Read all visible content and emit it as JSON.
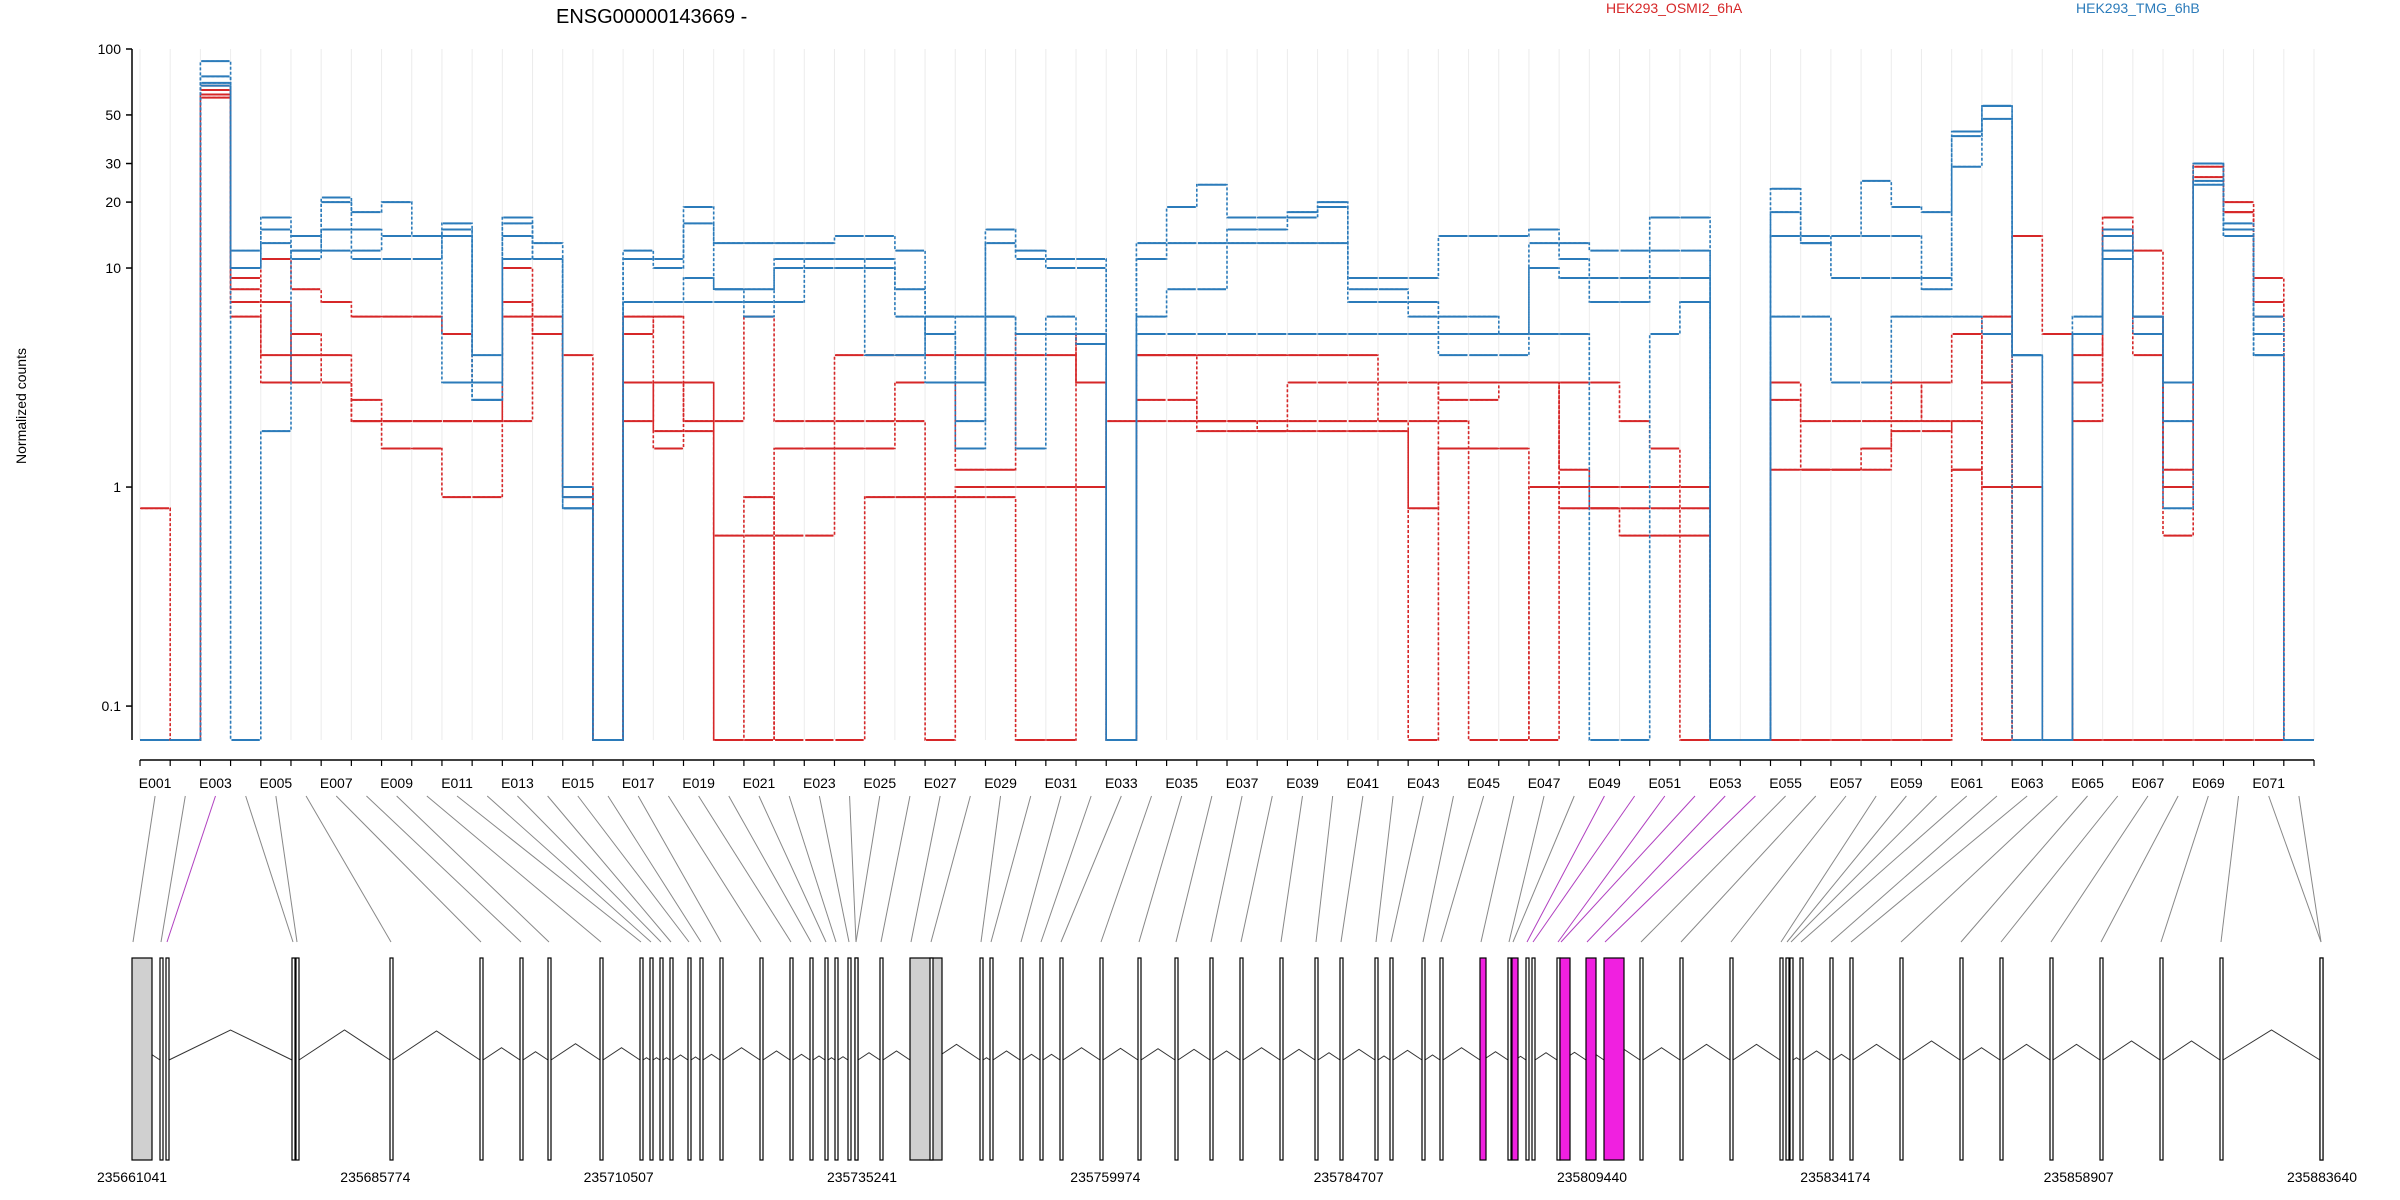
{
  "chart_data": {
    "type": "line",
    "title": "ENSG00000143669 -",
    "ylabel": "Normalized counts",
    "xlabel": "",
    "yscale": "log",
    "ylim": [
      0.07,
      100
    ],
    "y_ticks": [
      100,
      50,
      30,
      20,
      10,
      1,
      0.1
    ],
    "y_tick_labels": [
      "100",
      "50",
      "30",
      "20",
      "10",
      "1",
      "0.1"
    ],
    "grid": "vertical",
    "legend": {
      "placement": "top-right",
      "labels": [
        "HEK293_OSMI2_6hA",
        "HEK293_TMG_6hB"
      ]
    },
    "colors": {
      "HEK293_OSMI2_6hA": "#d62728",
      "HEK293_TMG_6hB": "#2b7bba",
      "highlight": "#f020e0",
      "exon_fill": "#d0d0d0"
    },
    "exon_bin_labels": [
      "E001",
      "E003",
      "E005",
      "E007",
      "E009",
      "E011",
      "E013",
      "E015",
      "E017",
      "E019",
      "E021",
      "E023",
      "E025",
      "E027",
      "E029",
      "E031",
      "E033",
      "E035",
      "E037",
      "E039",
      "E041",
      "E043",
      "E045",
      "E047",
      "E049",
      "E051",
      "E053",
      "E055",
      "E057",
      "E059",
      "E061",
      "E063",
      "E065",
      "E067",
      "E069",
      "E071"
    ],
    "x": [
      "E001",
      "E002",
      "E003",
      "E004",
      "E005",
      "E006",
      "E007",
      "E008",
      "E009",
      "E010",
      "E011",
      "E012",
      "E013",
      "E014",
      "E015",
      "E016",
      "E017",
      "E018",
      "E019",
      "E020",
      "E021",
      "E022",
      "E023",
      "E024",
      "E025",
      "E026",
      "E027",
      "E028",
      "E029",
      "E030",
      "E031",
      "E032",
      "E033",
      "E034",
      "E035",
      "E036",
      "E037",
      "E038",
      "E039",
      "E040",
      "E041",
      "E042",
      "E043",
      "E044",
      "E045",
      "E046",
      "E047",
      "E048",
      "E049",
      "E050",
      "E051",
      "E052",
      "E053",
      "E054",
      "E055",
      "E056",
      "E057",
      "E058",
      "E059",
      "E060",
      "E061",
      "E062",
      "E063",
      "E064",
      "E065",
      "E066",
      "E067",
      "E068",
      "E069",
      "E070",
      "E071",
      "E072"
    ],
    "series": [
      {
        "name": "HEK293_OSMI2_6hA",
        "group": "HEK293_OSMI2_6hA",
        "values": [
          0.8,
          0.07,
          62,
          7,
          11,
          8,
          7,
          6,
          6,
          6,
          5,
          3,
          7,
          5,
          4,
          0.07,
          6,
          1.5,
          3,
          2,
          6,
          2,
          2,
          2,
          2,
          2,
          0.07,
          1,
          1,
          1,
          1,
          1,
          2,
          2,
          2,
          2,
          2,
          2,
          2,
          2,
          2,
          2,
          2,
          2,
          0.07,
          0.07,
          1,
          3,
          3,
          2,
          1.5,
          0.07,
          0.07,
          0.07,
          0.07,
          0.07,
          0.07,
          0.07,
          0.07,
          0.07,
          1.2,
          0.07,
          14,
          5,
          0.07,
          0.07,
          0.07,
          0.07,
          0.07,
          0.07,
          0.07,
          0.07
        ]
      },
      {
        "name": "",
        "group": "HEK293_OSMI2_6hA",
        "values": [
          0.07,
          0.07,
          65,
          9,
          4,
          4,
          4,
          2,
          2,
          2,
          2,
          2,
          6,
          6,
          0.9,
          0.07,
          5,
          6,
          3,
          0.07,
          0.07,
          1.5,
          1.5,
          1.5,
          1.5,
          3,
          3,
          1.2,
          1.2,
          5,
          5,
          3,
          0.07,
          4,
          4,
          2,
          2,
          1.8,
          1.8,
          1.8,
          1.8,
          1.8,
          0.07,
          1.5,
          1.5,
          1.5,
          0.07,
          1,
          1,
          1,
          1,
          1,
          0.07,
          0.07,
          3,
          2,
          2,
          2,
          3,
          2,
          1.2,
          6,
          1,
          0.07,
          2,
          15,
          12,
          1.2,
          30,
          18,
          9,
          0.07
        ]
      },
      {
        "name": "",
        "group": "HEK293_OSMI2_6hA",
        "values": [
          0.07,
          0.07,
          68,
          6,
          3,
          5,
          3,
          2.5,
          1.5,
          1.5,
          0.9,
          0.9,
          10,
          5,
          1,
          0.07,
          2,
          3,
          2,
          0.07,
          0.9,
          0.07,
          0.07,
          0.07,
          0.9,
          0.9,
          0.9,
          0.9,
          0.9,
          0.07,
          0.07,
          5,
          0.07,
          2.5,
          2.5,
          1.8,
          1.8,
          1.8,
          3,
          3,
          3,
          3,
          3,
          2.5,
          2.5,
          3,
          3,
          0.8,
          0.8,
          0.8,
          0.8,
          0.8,
          0.07,
          0.07,
          2.5,
          1.2,
          1.2,
          1.5,
          1.8,
          1.8,
          2,
          1,
          0.07,
          0.07,
          4,
          17,
          6,
          1,
          29,
          20,
          7,
          0.07
        ]
      },
      {
        "name": "",
        "group": "HEK293_OSMI2_6hA",
        "values": [
          0.07,
          0.07,
          60,
          8,
          7,
          3,
          3,
          2,
          2,
          2,
          2,
          2,
          2,
          5,
          1,
          0.07,
          3,
          1.8,
          1.8,
          0.6,
          0.6,
          0.6,
          0.6,
          4,
          4,
          4,
          4,
          4,
          4,
          4,
          4,
          3,
          0.07,
          4,
          4,
          4,
          4,
          4,
          4,
          4,
          4,
          2,
          0.8,
          3,
          3,
          3,
          3,
          1.2,
          0.8,
          0.6,
          0.6,
          0.6,
          0.07,
          0.07,
          1.2,
          1.2,
          1.2,
          1.2,
          2,
          3,
          5,
          3,
          0.07,
          0.07,
          3,
          14,
          4,
          0.6,
          26,
          18,
          6,
          0.07
        ]
      },
      {
        "name": "HEK293_TMG_6hB",
        "group": "HEK293_TMG_6hB",
        "values": [
          0.07,
          0.07,
          88,
          12,
          17,
          14,
          20,
          18,
          20,
          14,
          16,
          4,
          17,
          13,
          1,
          0.07,
          12,
          11,
          19,
          13,
          13,
          13,
          13,
          14,
          14,
          12,
          6,
          3,
          15,
          12,
          11,
          11,
          0.07,
          13,
          19,
          24,
          17,
          17,
          18,
          20,
          9,
          9,
          9,
          14,
          14,
          14,
          15,
          13,
          12,
          12,
          17,
          17,
          0.07,
          0.07,
          23,
          13,
          14,
          25,
          19,
          18,
          42,
          55,
          4,
          0.07,
          5,
          12,
          5,
          3,
          24,
          16,
          6,
          0.07
        ]
      },
      {
        "name": "",
        "group": "HEK293_TMG_6hB",
        "values": [
          0.07,
          0.07,
          75,
          10,
          15,
          12,
          21,
          15,
          14,
          14,
          15,
          2.5,
          16,
          11,
          0.9,
          0.07,
          11,
          10,
          16,
          8,
          8,
          11,
          11,
          11,
          11,
          8,
          3,
          2,
          13,
          11,
          10,
          10,
          0.07,
          11,
          13,
          13,
          15,
          15,
          17,
          19,
          7,
          7,
          7,
          6,
          6,
          5,
          13,
          11,
          9,
          9,
          12,
          12,
          0.07,
          0.07,
          18,
          14,
          14,
          14,
          14,
          9,
          29,
          55,
          4,
          0.07,
          6,
          15,
          6,
          2,
          30,
          15,
          5,
          0.07
        ]
      },
      {
        "name": "",
        "group": "HEK293_TMG_6hB",
        "values": [
          0.07,
          0.07,
          70,
          10,
          13,
          11,
          15,
          11,
          11,
          11,
          14,
          2.5,
          14,
          11,
          0.8,
          0.07,
          7,
          7,
          9,
          8,
          6,
          10,
          10,
          10,
          10,
          6,
          5,
          1.5,
          6,
          5,
          5,
          5,
          0.07,
          6,
          8,
          8,
          13,
          13,
          13,
          13,
          8,
          8,
          6,
          4,
          4,
          4,
          10,
          9,
          7,
          7,
          9,
          9,
          0.07,
          0.07,
          14,
          13,
          9,
          9,
          9,
          8,
          40,
          48,
          4,
          0.07,
          5,
          11,
          6,
          0.8,
          25,
          14,
          4,
          0.07
        ]
      },
      {
        "name": "",
        "group": "HEK293_TMG_6hB",
        "values": [
          0.07,
          0.07,
          68,
          0.07,
          1.8,
          12,
          12,
          12,
          14,
          14,
          3,
          3,
          11,
          11,
          0.8,
          0.07,
          7,
          7,
          7,
          7,
          7,
          7,
          11,
          11,
          4,
          4,
          6,
          6,
          6,
          1.5,
          6,
          4.5,
          0.07,
          5,
          5,
          5,
          5,
          5,
          5,
          5,
          5,
          5,
          5,
          5,
          5,
          5,
          5,
          5,
          0.07,
          0.07,
          5,
          7,
          0.07,
          0.07,
          6,
          6,
          3,
          3,
          6,
          6,
          6,
          5,
          0.07,
          0.07,
          5,
          14,
          6,
          3,
          30,
          14,
          4,
          0.07
        ]
      }
    ],
    "gene_coordinates": [
      "235661041",
      "235685774",
      "235710507",
      "235735241",
      "235759974",
      "235784707",
      "235809440",
      "235834174",
      "235858907",
      "235883640"
    ]
  }
}
